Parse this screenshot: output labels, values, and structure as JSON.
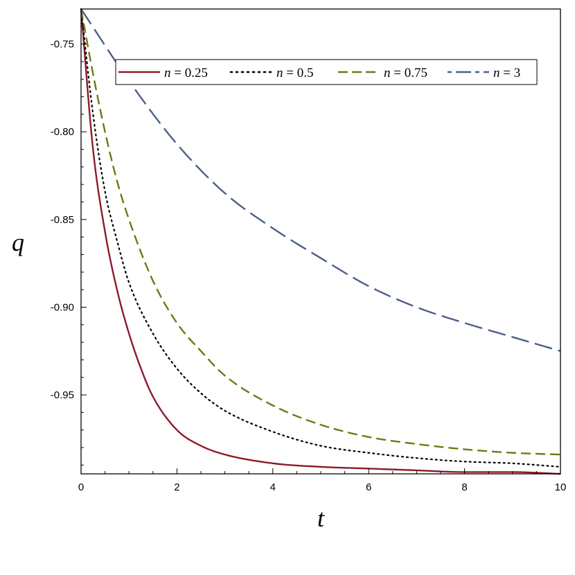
{
  "chart_data": {
    "type": "line",
    "xlabel": "t",
    "ylabel": "q",
    "xlim": [
      0,
      10
    ],
    "ylim": [
      -0.995,
      -0.73
    ],
    "x_ticks": [
      0,
      2,
      4,
      6,
      8,
      10
    ],
    "x_tick_labels": [
      "0",
      "2",
      "4",
      "6",
      "8",
      "10"
    ],
    "y_ticks": [
      -0.75,
      -0.8,
      -0.85,
      -0.9,
      -0.95
    ],
    "y_tick_labels": [
      "-0.75",
      "-0.80",
      "-0.85",
      "-0.90",
      "-0.95"
    ],
    "grid": false,
    "legend_position": "top",
    "legend": [
      "n = 0.25",
      "n = 0.5",
      "n = 0.75",
      "n = 3"
    ],
    "series": [
      {
        "name": "n = 0.25",
        "color": "#8b1a2b",
        "style": "solid",
        "x": [
          0,
          0.25,
          0.5,
          0.75,
          1,
          1.25,
          1.5,
          2,
          2.5,
          3,
          4,
          5,
          6,
          7,
          8,
          9,
          10
        ],
        "y": [
          -0.73,
          -0.81,
          -0.857,
          -0.89,
          -0.915,
          -0.935,
          -0.951,
          -0.97,
          -0.979,
          -0.984,
          -0.989,
          -0.991,
          -0.992,
          -0.993,
          -0.994,
          -0.994,
          -0.995
        ]
      },
      {
        "name": "n = 0.5",
        "color": "#000000",
        "style": "dotted",
        "x": [
          0,
          0.25,
          0.5,
          0.75,
          1,
          1.5,
          2,
          2.5,
          3,
          4,
          5,
          6,
          7,
          8,
          9,
          10
        ],
        "y": [
          -0.73,
          -0.79,
          -0.834,
          -0.862,
          -0.886,
          -0.915,
          -0.935,
          -0.949,
          -0.959,
          -0.971,
          -0.979,
          -0.983,
          -0.986,
          -0.988,
          -0.989,
          -0.991
        ]
      },
      {
        "name": "n = 0.75",
        "color": "#6b7a12",
        "style": "dashed",
        "x": [
          0,
          0.25,
          0.5,
          0.75,
          1,
          1.5,
          2,
          2.5,
          3,
          4,
          5,
          6,
          7,
          8,
          9,
          10
        ],
        "y": [
          -0.73,
          -0.767,
          -0.8,
          -0.828,
          -0.85,
          -0.885,
          -0.909,
          -0.925,
          -0.939,
          -0.956,
          -0.967,
          -0.974,
          -0.978,
          -0.981,
          -0.983,
          -0.984
        ]
      },
      {
        "name": "n = 3",
        "color": "#4a5f88",
        "style": "longdash",
        "x": [
          0,
          1,
          2,
          3,
          4,
          5,
          6,
          7,
          8,
          9,
          10
        ],
        "y": [
          -0.73,
          -0.771,
          -0.807,
          -0.835,
          -0.855,
          -0.872,
          -0.888,
          -0.9,
          -0.909,
          -0.917,
          -0.925
        ]
      }
    ]
  }
}
